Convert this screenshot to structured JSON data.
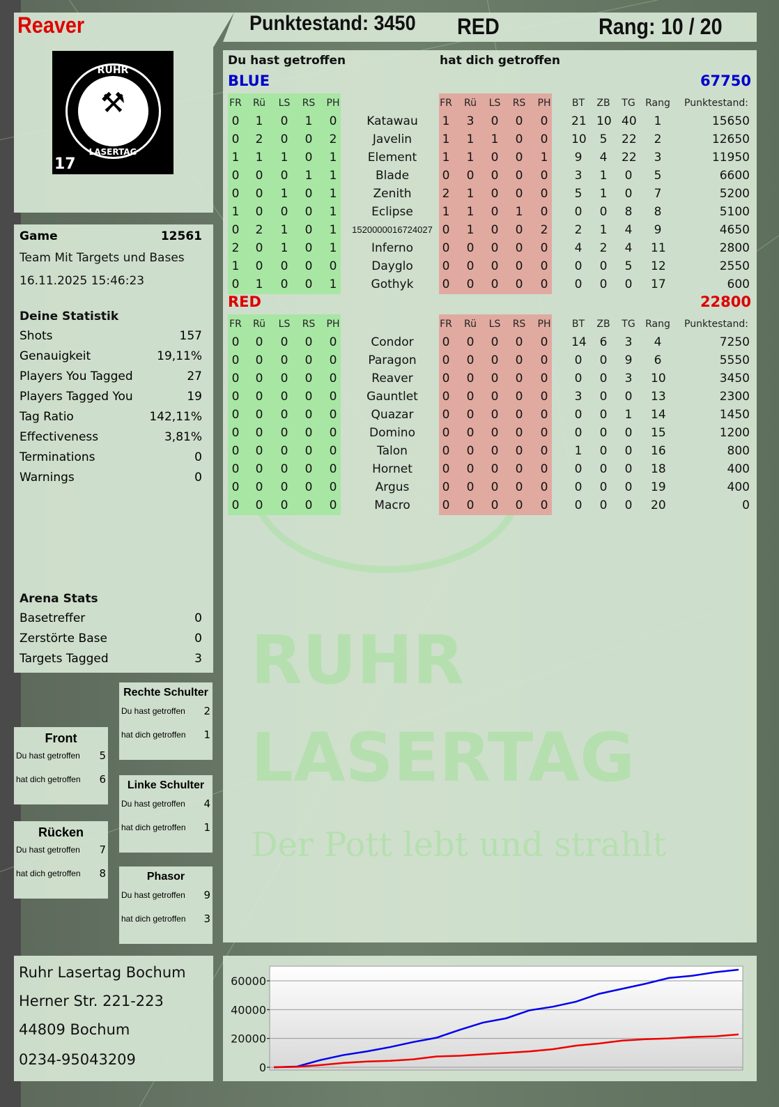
{
  "player": {
    "name": "Reaver",
    "logo_text": [
      "RUHR",
      "LASERTAG"
    ],
    "logo_badge": "17"
  },
  "header": {
    "score": "Punktestand: 3450",
    "team": "RED",
    "rank": "Rang: 10 / 20"
  },
  "game": {
    "label": "Game",
    "id": "12561",
    "mode": "Team Mit Targets und Bases",
    "datetime": "16.11.2025 15:46:23"
  },
  "stats": {
    "title": "Deine Statistik",
    "rows": [
      {
        "label": "Shots",
        "value": "157"
      },
      {
        "label": "Genauigkeit",
        "value": "19,11%"
      },
      {
        "label": "Players You Tagged",
        "value": "27"
      },
      {
        "label": "Players Tagged You",
        "value": "19"
      },
      {
        "label": "Tag Ratio",
        "value": "142,11%"
      },
      {
        "label": "Effectiveness",
        "value": "3,81%"
      },
      {
        "label": "Terminations",
        "value": "0"
      },
      {
        "label": "Warnings",
        "value": "0"
      }
    ]
  },
  "arena": {
    "title": "Arena Stats",
    "rows": [
      {
        "label": "Basetreffer",
        "value": "0"
      },
      {
        "label": "Zerstörte Base",
        "value": "0"
      },
      {
        "label": "Targets Tagged",
        "value": "3"
      }
    ]
  },
  "hit_zones": [
    {
      "title": "Rechte Schulter",
      "you_hit_label": "Du hast getroffen",
      "you_hit": "2",
      "hit_you_label": "hat dich getroffen",
      "hit_you": "1"
    },
    {
      "title": "Front",
      "you_hit_label": "Du hast getroffen",
      "you_hit": "5",
      "hit_you_label": "hat dich getroffen",
      "hit_you": "6"
    },
    {
      "title": "Linke Schulter",
      "you_hit_label": "Du hast getroffen",
      "you_hit": "4",
      "hit_you_label": "hat dich getroffen",
      "hit_you": "1"
    },
    {
      "title": "Rücken",
      "you_hit_label": "Du hast getroffen",
      "you_hit": "7",
      "hit_you_label": "hat dich getroffen",
      "hit_you": "8"
    },
    {
      "title": "Phasor",
      "you_hit_label": "Du hast getroffen",
      "you_hit": "9",
      "hit_you_label": "hat dich getroffen",
      "hit_you": "3"
    }
  ],
  "address": {
    "lines": [
      "Ruhr Lasertag Bochum",
      "Herner Str. 221-223",
      "44809 Bochum",
      "0234-95043209"
    ]
  },
  "table": {
    "you_hit_title": "Du hast getroffen",
    "hit_you_title": "hat dich getroffen",
    "hit_cols": [
      "FR",
      "Rü",
      "LS",
      "RS",
      "PH"
    ],
    "stat_cols": [
      "BT",
      "ZB",
      "TG",
      "Rang",
      "Punktestand:"
    ],
    "green": "#a8e6a4",
    "red": "#e0aaa0",
    "teams": [
      {
        "name": "BLUE",
        "score": "67750",
        "color": "#0000cc",
        "rows": [
          [
            [
              "0",
              "1",
              "0",
              "1",
              "0"
            ],
            "Katawau",
            [
              "1",
              "3",
              "0",
              "0",
              "0"
            ],
            [
              "21",
              "10",
              "40",
              "1",
              "15650"
            ]
          ],
          [
            [
              "0",
              "2",
              "0",
              "0",
              "2"
            ],
            "Javelin",
            [
              "1",
              "1",
              "1",
              "0",
              "0"
            ],
            [
              "10",
              "5",
              "22",
              "2",
              "12650"
            ]
          ],
          [
            [
              "1",
              "1",
              "1",
              "0",
              "1"
            ],
            "Element",
            [
              "1",
              "1",
              "0",
              "0",
              "1"
            ],
            [
              "9",
              "4",
              "22",
              "3",
              "11950"
            ]
          ],
          [
            [
              "0",
              "0",
              "0",
              "1",
              "1"
            ],
            "Blade",
            [
              "0",
              "0",
              "0",
              "0",
              "0"
            ],
            [
              "3",
              "1",
              "0",
              "5",
              "6600"
            ]
          ],
          [
            [
              "0",
              "0",
              "1",
              "0",
              "1"
            ],
            "Zenith",
            [
              "2",
              "1",
              "0",
              "0",
              "0"
            ],
            [
              "5",
              "1",
              "0",
              "7",
              "5200"
            ]
          ],
          [
            [
              "1",
              "0",
              "0",
              "0",
              "1"
            ],
            "Eclipse",
            [
              "1",
              "1",
              "0",
              "1",
              "0"
            ],
            [
              "0",
              "0",
              "8",
              "8",
              "5100"
            ]
          ],
          [
            [
              "0",
              "2",
              "1",
              "0",
              "1"
            ],
            "1520000016724027",
            [
              "0",
              "1",
              "0",
              "0",
              "2"
            ],
            [
              "2",
              "1",
              "4",
              "9",
              "4650"
            ]
          ],
          [
            [
              "2",
              "0",
              "1",
              "0",
              "1"
            ],
            "Inferno",
            [
              "0",
              "0",
              "0",
              "0",
              "0"
            ],
            [
              "4",
              "2",
              "4",
              "11",
              "2800"
            ]
          ],
          [
            [
              "1",
              "0",
              "0",
              "0",
              "0"
            ],
            "Dayglo",
            [
              "0",
              "0",
              "0",
              "0",
              "0"
            ],
            [
              "0",
              "0",
              "5",
              "12",
              "2550"
            ]
          ],
          [
            [
              "0",
              "1",
              "0",
              "0",
              "1"
            ],
            "Gothyk",
            [
              "0",
              "0",
              "0",
              "0",
              "0"
            ],
            [
              "0",
              "0",
              "0",
              "17",
              "600"
            ]
          ]
        ]
      },
      {
        "name": "RED",
        "score": "22800",
        "color": "#dd0000",
        "rows": [
          [
            [
              "0",
              "0",
              "0",
              "0",
              "0"
            ],
            "Condor",
            [
              "0",
              "0",
              "0",
              "0",
              "0"
            ],
            [
              "14",
              "6",
              "3",
              "4",
              "7250"
            ]
          ],
          [
            [
              "0",
              "0",
              "0",
              "0",
              "0"
            ],
            "Paragon",
            [
              "0",
              "0",
              "0",
              "0",
              "0"
            ],
            [
              "0",
              "0",
              "9",
              "6",
              "5550"
            ]
          ],
          [
            [
              "0",
              "0",
              "0",
              "0",
              "0"
            ],
            "Reaver",
            [
              "0",
              "0",
              "0",
              "0",
              "0"
            ],
            [
              "0",
              "0",
              "3",
              "10",
              "3450"
            ]
          ],
          [
            [
              "0",
              "0",
              "0",
              "0",
              "0"
            ],
            "Gauntlet",
            [
              "0",
              "0",
              "0",
              "0",
              "0"
            ],
            [
              "3",
              "0",
              "0",
              "13",
              "2300"
            ]
          ],
          [
            [
              "0",
              "0",
              "0",
              "0",
              "0"
            ],
            "Quazar",
            [
              "0",
              "0",
              "0",
              "0",
              "0"
            ],
            [
              "0",
              "0",
              "1",
              "14",
              "1450"
            ]
          ],
          [
            [
              "0",
              "0",
              "0",
              "0",
              "0"
            ],
            "Domino",
            [
              "0",
              "0",
              "0",
              "0",
              "0"
            ],
            [
              "0",
              "0",
              "0",
              "15",
              "1200"
            ]
          ],
          [
            [
              "0",
              "0",
              "0",
              "0",
              "0"
            ],
            "Talon",
            [
              "0",
              "0",
              "0",
              "0",
              "0"
            ],
            [
              "1",
              "0",
              "0",
              "16",
              "800"
            ]
          ],
          [
            [
              "0",
              "0",
              "0",
              "0",
              "0"
            ],
            "Hornet",
            [
              "0",
              "0",
              "0",
              "0",
              "0"
            ],
            [
              "0",
              "0",
              "0",
              "18",
              "400"
            ]
          ],
          [
            [
              "0",
              "0",
              "0",
              "0",
              "0"
            ],
            "Argus",
            [
              "0",
              "0",
              "0",
              "0",
              "0"
            ],
            [
              "0",
              "0",
              "0",
              "19",
              "400"
            ]
          ],
          [
            [
              "0",
              "0",
              "0",
              "0",
              "0"
            ],
            "Macro",
            [
              "0",
              "0",
              "0",
              "0",
              "0"
            ],
            [
              "0",
              "0",
              "0",
              "20",
              "0"
            ]
          ]
        ]
      }
    ]
  },
  "watermark": {
    "line1": "RUHR",
    "line2": "LASERTAG",
    "slogan": "Der Pott lebt und strahlt"
  },
  "chart_data": {
    "type": "line",
    "ylim": [
      0,
      70000
    ],
    "yticks": [
      "0",
      "20000",
      "40000",
      "60000"
    ],
    "grid": true,
    "series": [
      {
        "color": "#0000ee",
        "values": [
          0,
          500,
          5000,
          8500,
          11000,
          14000,
          17500,
          20500,
          26000,
          31000,
          34000,
          39500,
          42000,
          45500,
          51000,
          54500,
          58000,
          62000,
          63500,
          66000,
          67750
        ]
      },
      {
        "color": "#ee0000",
        "values": [
          0,
          300,
          1500,
          3000,
          4000,
          4500,
          5500,
          7500,
          8000,
          9000,
          10000,
          11000,
          12500,
          15000,
          16500,
          18500,
          19500,
          20000,
          21000,
          21500,
          22800
        ]
      }
    ]
  }
}
